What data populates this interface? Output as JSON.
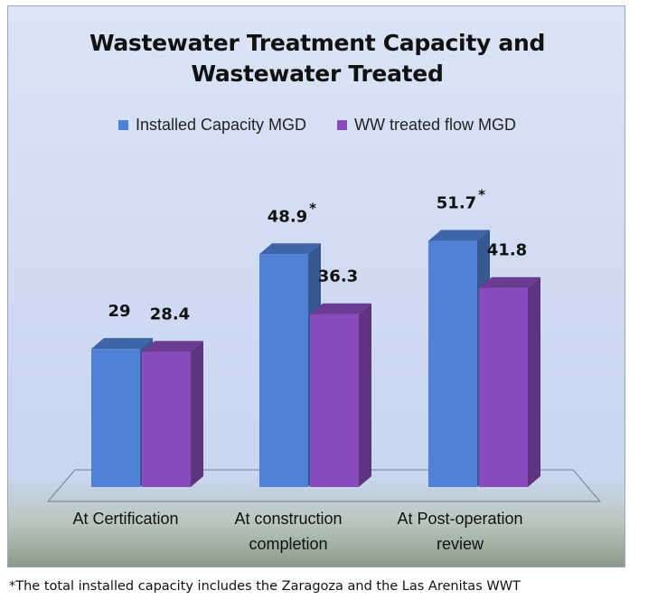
{
  "chart_data": {
    "type": "bar",
    "title_lines": [
      "Wastewater Treatment Capacity and",
      "Wastewater Treated"
    ],
    "categories": [
      [
        "At Certification"
      ],
      [
        "At construction",
        "completion"
      ],
      [
        "At Post-operation",
        "review"
      ]
    ],
    "series": [
      {
        "name": "Installed Capacity MGD",
        "values": [
          29,
          48.9,
          51.7
        ],
        "color": "#4f81d6"
      },
      {
        "name": "WW treated flow MGD",
        "values": [
          28.4,
          36.3,
          41.8
        ],
        "color": "#8a4cbc"
      }
    ],
    "data_labels": [
      [
        "29",
        "48.9",
        "51.7"
      ],
      [
        "28.4",
        "36.3",
        "41.8"
      ]
    ],
    "annotations": {
      "asterisk": "*",
      "asterisk_on": [
        [
          0,
          1
        ],
        [
          0,
          2
        ]
      ]
    },
    "style": "3d-clustered-column",
    "legend_position": "top",
    "grid": false
  },
  "footnote": "*The total installed capacity includes the Zaragoza and the Las Arenitas WWT"
}
